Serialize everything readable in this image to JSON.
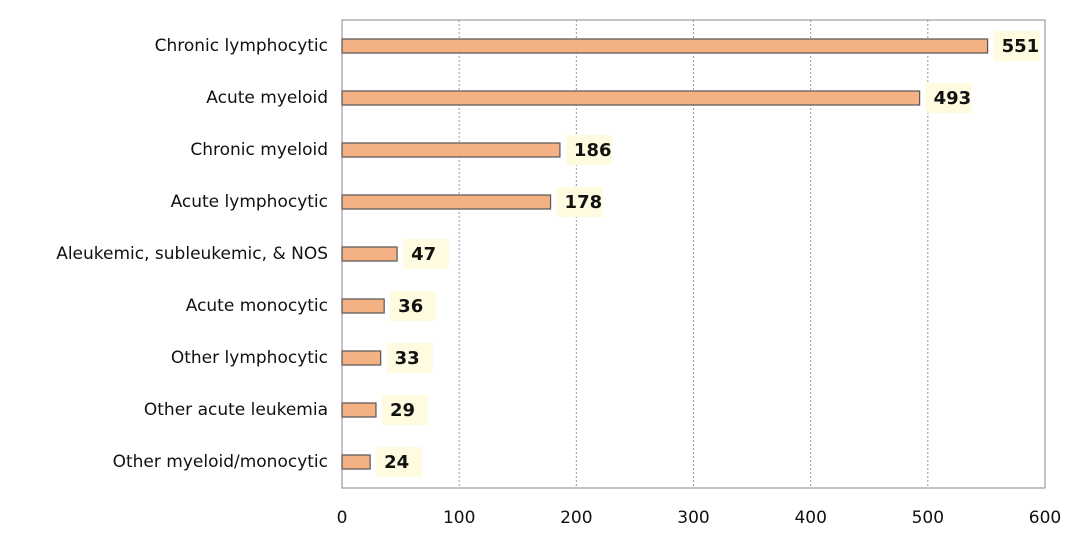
{
  "chart_data": {
    "type": "bar",
    "orientation": "horizontal",
    "categories": [
      "Chronic lymphocytic",
      "Acute myeloid",
      "Chronic myeloid",
      "Acute lymphocytic",
      "Aleukemic, subleukemic, & NOS",
      "Acute monocytic",
      "Other lymphocytic",
      "Other acute leukemia",
      "Other myeloid/monocytic"
    ],
    "values": [
      551,
      493,
      186,
      178,
      47,
      36,
      33,
      29,
      24
    ],
    "color": "#f4b183",
    "edge_color": "#555555",
    "label_background": "#fffbe0",
    "xlim": [
      0,
      600
    ],
    "xticks": [
      0,
      100,
      200,
      300,
      400,
      500,
      600
    ],
    "grid": true
  }
}
